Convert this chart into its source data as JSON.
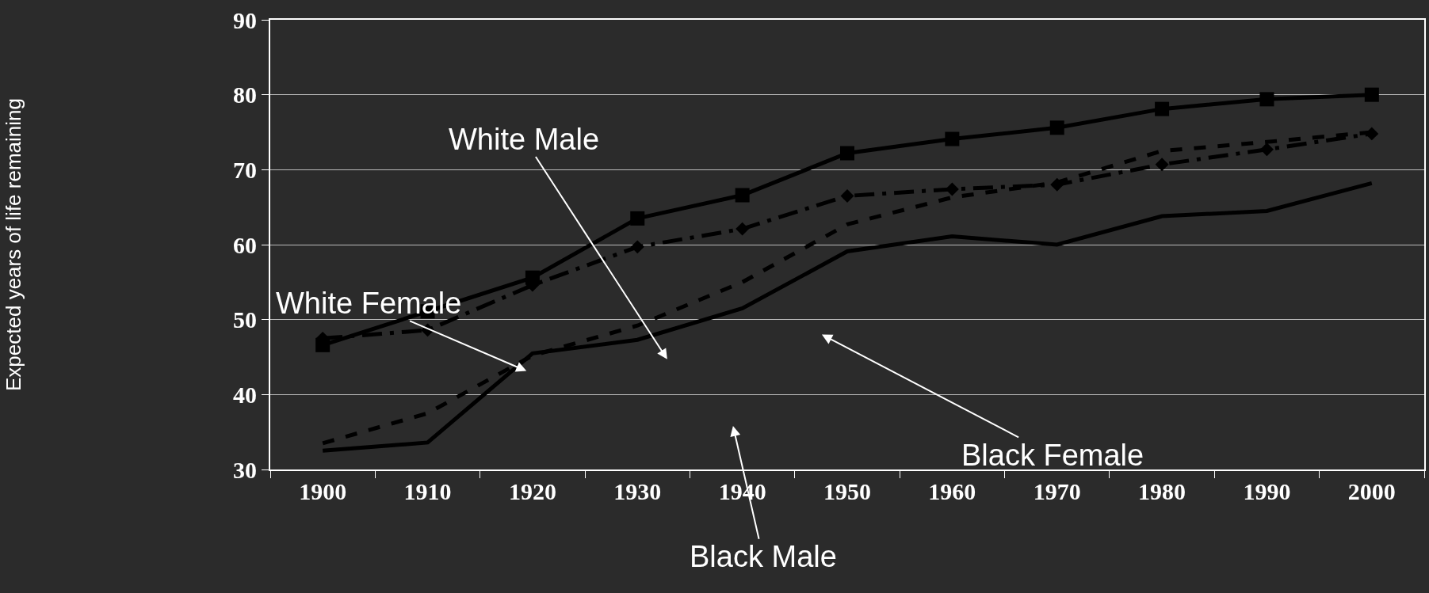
{
  "chart_data": {
    "type": "line",
    "categories": [
      "1900",
      "1910",
      "1920",
      "1930",
      "1940",
      "1950",
      "1960",
      "1970",
      "1980",
      "1990",
      "2000"
    ],
    "ylim": [
      30,
      90
    ],
    "yticks": [
      30,
      40,
      50,
      60,
      70,
      80,
      90
    ],
    "grid": "y",
    "series": [
      {
        "color": "#000000",
        "marker": "square",
        "line_style": "solid",
        "values": [
          46.6,
          51.1,
          55.6,
          63.5,
          66.6,
          72.2,
          74.1,
          75.6,
          78.1,
          79.4,
          80.0
        ]
      },
      {
        "color": "#000000",
        "marker": "diamond",
        "line_style": "dashdot",
        "values": [
          47.5,
          48.6,
          54.6,
          59.7,
          62.1,
          66.5,
          67.4,
          68.0,
          70.7,
          72.7,
          74.8
        ]
      },
      {
        "color": "#000000",
        "marker": "none",
        "line_style": "dashed",
        "values": [
          33.5,
          37.5,
          45.2,
          49.2,
          55.0,
          62.7,
          66.3,
          68.3,
          72.5,
          73.7,
          75.0
        ]
      },
      {
        "color": "#000000",
        "marker": "none",
        "line_style": "solid",
        "values": [
          32.5,
          33.6,
          45.5,
          47.3,
          51.5,
          59.1,
          61.1,
          60.0,
          63.8,
          64.5,
          68.2
        ]
      }
    ],
    "annotations": [
      "White Male",
      "White Female",
      "Black Female",
      "Black Male",
      "Expected years of life remaining"
    ]
  }
}
